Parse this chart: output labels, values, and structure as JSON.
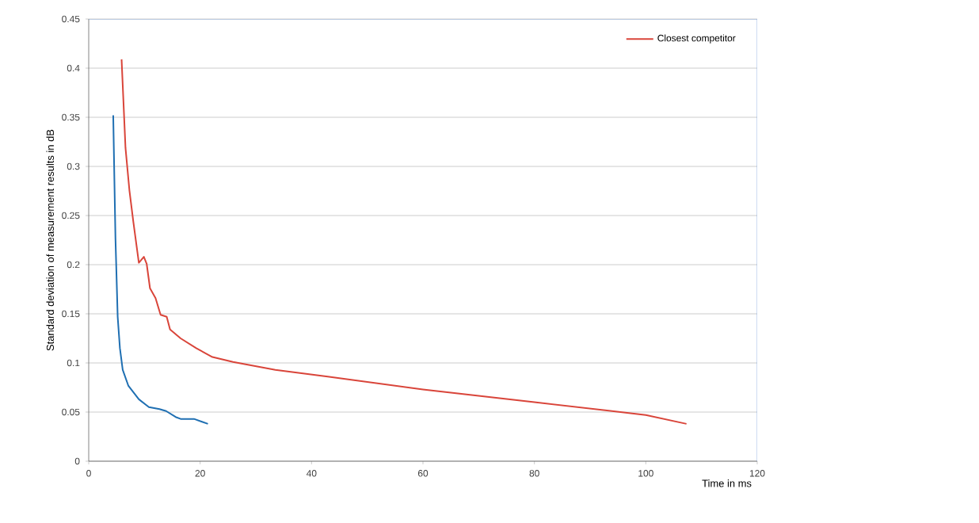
{
  "chart_data": {
    "type": "line",
    "xlabel": "Time in ms",
    "ylabel": "Standard deviation of measurement results in dB",
    "xlim": [
      0,
      120
    ],
    "ylim": [
      0,
      0.45
    ],
    "xticks": [
      0,
      20,
      40,
      60,
      80,
      100,
      120
    ],
    "yticks": [
      0,
      0.05,
      0.1,
      0.15,
      0.2,
      0.25,
      0.3,
      0.35,
      0.4,
      0.45
    ],
    "grid": "y",
    "legend": "top right",
    "marker": "none",
    "line_style": "solid",
    "series": [
      {
        "color": "#1f6fb2",
        "x": [
          4.4,
          4.8,
          5.2,
          5.6,
          6.1,
          7.1,
          9.0,
          10.8,
          12.7,
          13.9,
          15.6,
          16.5,
          18.9,
          21.4
        ],
        "values": [
          0.352,
          0.227,
          0.147,
          0.115,
          0.093,
          0.077,
          0.063,
          0.055,
          0.053,
          0.051,
          0.045,
          0.043,
          0.043,
          0.038
        ]
      },
      {
        "name": "Closest competitor",
        "color": "#d9453a",
        "x": [
          5.9,
          6.6,
          7.3,
          8.0,
          9.0,
          9.9,
          10.4,
          11.0,
          12.0,
          12.9,
          14.0,
          14.6,
          16.5,
          19.3,
          22.2,
          25.9,
          33.5,
          42.9,
          60,
          80,
          100,
          107.3
        ],
        "values": [
          0.409,
          0.319,
          0.276,
          0.244,
          0.202,
          0.208,
          0.201,
          0.176,
          0.166,
          0.149,
          0.147,
          0.134,
          0.125,
          0.115,
          0.106,
          0.101,
          0.093,
          0.086,
          0.073,
          0.06,
          0.047,
          0.038
        ]
      }
    ]
  }
}
